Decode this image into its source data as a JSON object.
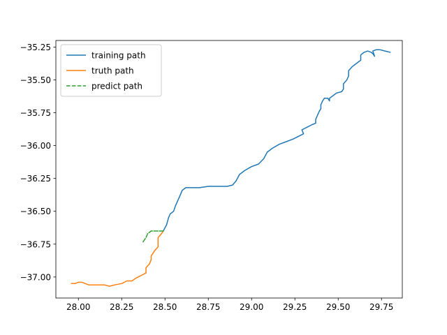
{
  "chart_data": {
    "type": "line",
    "title": "",
    "xlabel": "",
    "ylabel": "",
    "xlim": [
      27.87,
      29.87
    ],
    "ylim": [
      -37.16,
      -35.2
    ],
    "xticks": [
      28.0,
      28.25,
      28.5,
      28.75,
      29.0,
      29.25,
      29.5,
      29.75
    ],
    "xtick_labels": [
      "28.00",
      "28.25",
      "28.50",
      "28.75",
      "29.00",
      "29.25",
      "29.50",
      "29.75"
    ],
    "yticks": [
      -35.25,
      -35.5,
      -35.75,
      -36.0,
      -36.25,
      -36.5,
      -36.75,
      -37.0
    ],
    "ytick_labels": [
      "−35.25",
      "−35.50",
      "−35.75",
      "−36.00",
      "−36.25",
      "−36.50",
      "−36.75",
      "−37.00"
    ],
    "grid": false,
    "legend_position": "upper-left",
    "series": [
      {
        "name": "training path",
        "color": "#1f77b4",
        "style": "solid",
        "points": [
          [
            28.49,
            -36.65
          ],
          [
            28.51,
            -36.6
          ],
          [
            28.52,
            -36.55
          ],
          [
            28.53,
            -36.52
          ],
          [
            28.55,
            -36.5
          ],
          [
            28.56,
            -36.46
          ],
          [
            28.57,
            -36.43
          ],
          [
            28.58,
            -36.4
          ],
          [
            28.59,
            -36.37
          ],
          [
            28.6,
            -36.34
          ],
          [
            28.62,
            -36.32
          ],
          [
            28.65,
            -36.32
          ],
          [
            28.7,
            -36.32
          ],
          [
            28.75,
            -36.31
          ],
          [
            28.78,
            -36.31
          ],
          [
            28.82,
            -36.31
          ],
          [
            28.86,
            -36.31
          ],
          [
            28.89,
            -36.3
          ],
          [
            28.91,
            -36.27
          ],
          [
            28.93,
            -36.22
          ],
          [
            28.96,
            -36.19
          ],
          [
            29.0,
            -36.16
          ],
          [
            29.04,
            -36.14
          ],
          [
            29.07,
            -36.1
          ],
          [
            29.09,
            -36.05
          ],
          [
            29.12,
            -36.02
          ],
          [
            29.16,
            -35.99
          ],
          [
            29.2,
            -35.97
          ],
          [
            29.24,
            -35.95
          ],
          [
            29.27,
            -35.93
          ],
          [
            29.3,
            -35.91
          ],
          [
            29.29,
            -35.88
          ],
          [
            29.32,
            -35.86
          ],
          [
            29.35,
            -35.84
          ],
          [
            29.37,
            -35.83
          ],
          [
            29.37,
            -35.8
          ],
          [
            29.38,
            -35.77
          ],
          [
            29.39,
            -35.74
          ],
          [
            29.4,
            -35.72
          ],
          [
            29.4,
            -35.69
          ],
          [
            29.41,
            -35.66
          ],
          [
            29.42,
            -35.64
          ],
          [
            29.44,
            -35.64
          ],
          [
            29.45,
            -35.66
          ],
          [
            29.45,
            -35.64
          ],
          [
            29.47,
            -35.62
          ],
          [
            29.49,
            -35.6
          ],
          [
            29.52,
            -35.59
          ],
          [
            29.53,
            -35.57
          ],
          [
            29.53,
            -35.53
          ],
          [
            29.55,
            -35.5
          ],
          [
            29.56,
            -35.47
          ],
          [
            29.56,
            -35.43
          ],
          [
            29.58,
            -35.4
          ],
          [
            29.6,
            -35.38
          ],
          [
            29.62,
            -35.36
          ],
          [
            29.63,
            -35.35
          ],
          [
            29.63,
            -35.31
          ],
          [
            29.65,
            -35.29
          ],
          [
            29.67,
            -35.28
          ],
          [
            29.69,
            -35.29
          ],
          [
            29.7,
            -35.3
          ],
          [
            29.71,
            -35.32
          ],
          [
            29.7,
            -35.28
          ],
          [
            29.72,
            -35.27
          ],
          [
            29.74,
            -35.27
          ],
          [
            29.77,
            -35.28
          ],
          [
            29.8,
            -35.29
          ]
        ]
      },
      {
        "name": "truth path",
        "color": "#ff7f0e",
        "style": "solid",
        "points": [
          [
            27.96,
            -37.05
          ],
          [
            27.98,
            -37.05
          ],
          [
            28.0,
            -37.04
          ],
          [
            28.02,
            -37.04
          ],
          [
            28.04,
            -37.05
          ],
          [
            28.06,
            -37.06
          ],
          [
            28.09,
            -37.06
          ],
          [
            28.12,
            -37.06
          ],
          [
            28.15,
            -37.06
          ],
          [
            28.18,
            -37.07
          ],
          [
            28.21,
            -37.06
          ],
          [
            28.25,
            -37.05
          ],
          [
            28.28,
            -37.03
          ],
          [
            28.31,
            -37.03
          ],
          [
            28.33,
            -37.01
          ],
          [
            28.36,
            -36.99
          ],
          [
            28.39,
            -36.97
          ],
          [
            28.39,
            -36.93
          ],
          [
            28.41,
            -36.9
          ],
          [
            28.42,
            -36.87
          ],
          [
            28.42,
            -36.84
          ],
          [
            28.44,
            -36.8
          ],
          [
            28.46,
            -36.77
          ],
          [
            28.46,
            -36.73
          ],
          [
            28.46,
            -36.7
          ],
          [
            28.48,
            -36.67
          ],
          [
            28.49,
            -36.65
          ]
        ]
      },
      {
        "name": "predict path",
        "color": "#2ca02c",
        "style": "dashed",
        "points": [
          [
            28.49,
            -36.65
          ],
          [
            28.45,
            -36.65
          ],
          [
            28.42,
            -36.65
          ],
          [
            28.4,
            -36.67
          ],
          [
            28.39,
            -36.7
          ],
          [
            28.37,
            -36.74
          ]
        ]
      }
    ]
  }
}
